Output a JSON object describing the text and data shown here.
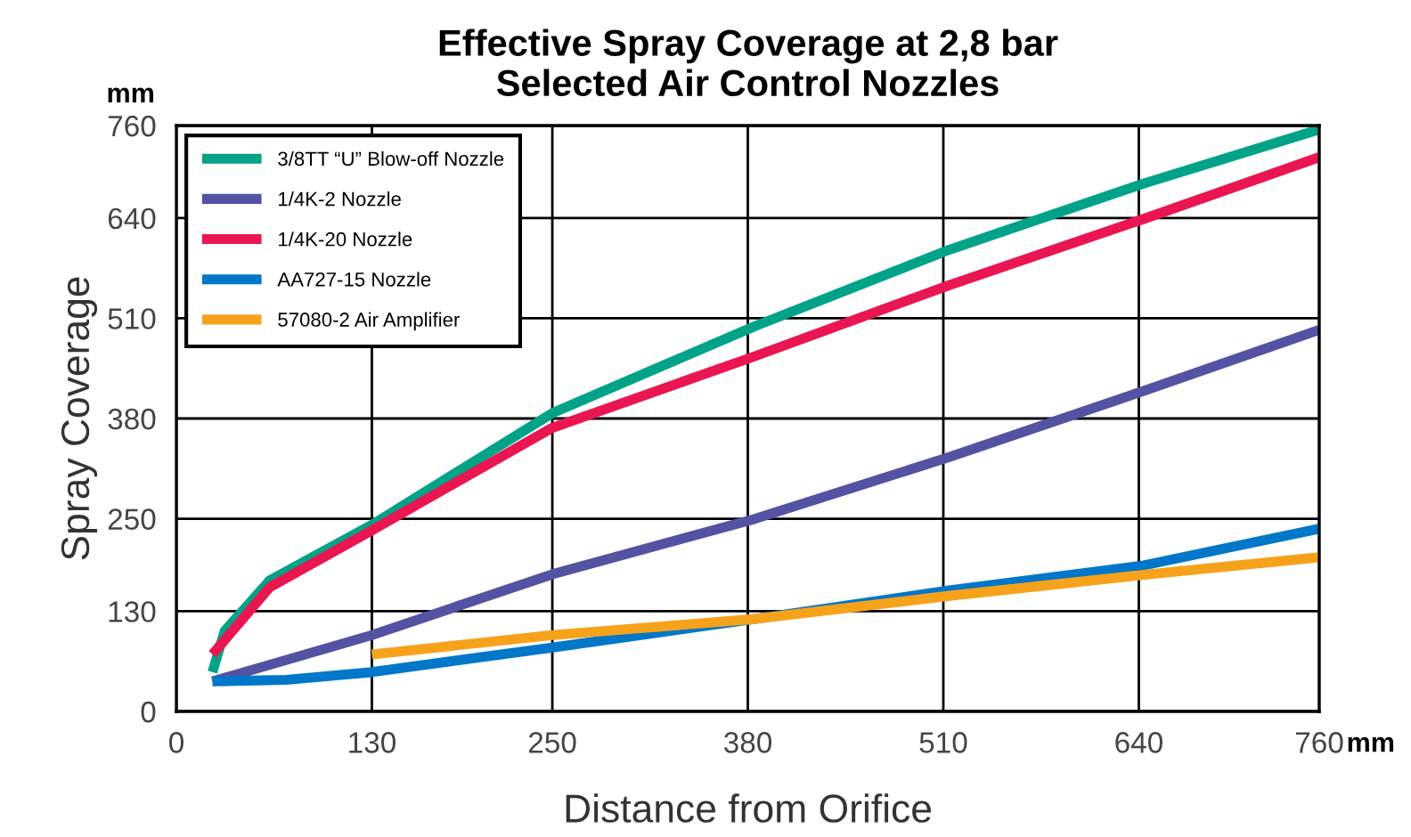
{
  "chart_data": {
    "type": "line",
    "title": "Effective Spray Coverage at 2,8 bar\nSelected Air Control Nozzles",
    "xlabel": "Distance from Orifice",
    "ylabel": "Spray Coverage",
    "annotations": [
      "mm",
      "mm"
    ],
    "xlim": [
      0,
      760
    ],
    "ylim": [
      0,
      760
    ],
    "xticks": [
      0,
      130,
      250,
      380,
      510,
      640,
      760
    ],
    "yticks": [
      0,
      130,
      250,
      380,
      510,
      640,
      760
    ],
    "grid": true,
    "legend": "top left",
    "marker": "none",
    "line_style": "solid",
    "series": [
      {
        "name": "3/8TT “U” Blow-off Nozzle",
        "color": "#00a388",
        "x": [
          24,
          32,
          62,
          130,
          250,
          385,
          514,
          642,
          760
        ],
        "values": [
          51,
          104,
          170,
          242,
          387,
          500,
          599,
          684,
          755
        ]
      },
      {
        "name": "1/4K-2 Nozzle",
        "color": "#5452a3",
        "x": [
          24,
          130,
          250,
          385,
          514,
          642,
          760
        ],
        "values": [
          39,
          99,
          178,
          250,
          330,
          415,
          495
        ]
      },
      {
        "name": "1/4K-20 Nozzle",
        "color": "#ea1651",
        "x": [
          24,
          62,
          130,
          250,
          385,
          514,
          642,
          760
        ],
        "values": [
          74,
          161,
          235,
          368,
          461,
          553,
          638,
          719
        ]
      },
      {
        "name": "AA727-15 Nozzle",
        "color": "#0077c8",
        "x": [
          24,
          73,
          130,
          250,
          385,
          514,
          642,
          760
        ],
        "values": [
          39,
          41,
          51,
          83,
          120,
          157,
          189,
          237
        ]
      },
      {
        "name": "57080-2 Air Amplifier",
        "color": "#f7a21b",
        "x": [
          130,
          250,
          385,
          514,
          642,
          760
        ],
        "values": [
          74,
          99,
          120,
          150,
          177,
          200
        ]
      }
    ]
  }
}
